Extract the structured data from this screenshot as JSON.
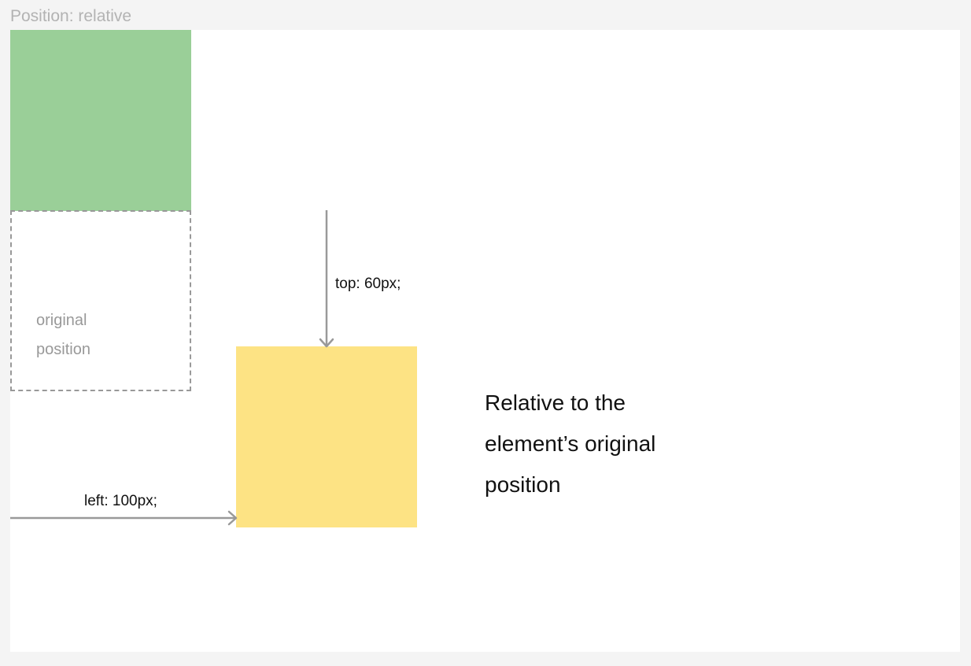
{
  "title": "Position: relative",
  "original_box": {
    "label": "original position"
  },
  "offsets": {
    "top_label": "top: 60px;",
    "left_label": "left: 100px;"
  },
  "caption": "Relative to the element’s original position",
  "colors": {
    "green_box": "#9acf98",
    "yellow_box": "#fde384",
    "arrow": "#999999",
    "dashed_border": "#999999"
  }
}
